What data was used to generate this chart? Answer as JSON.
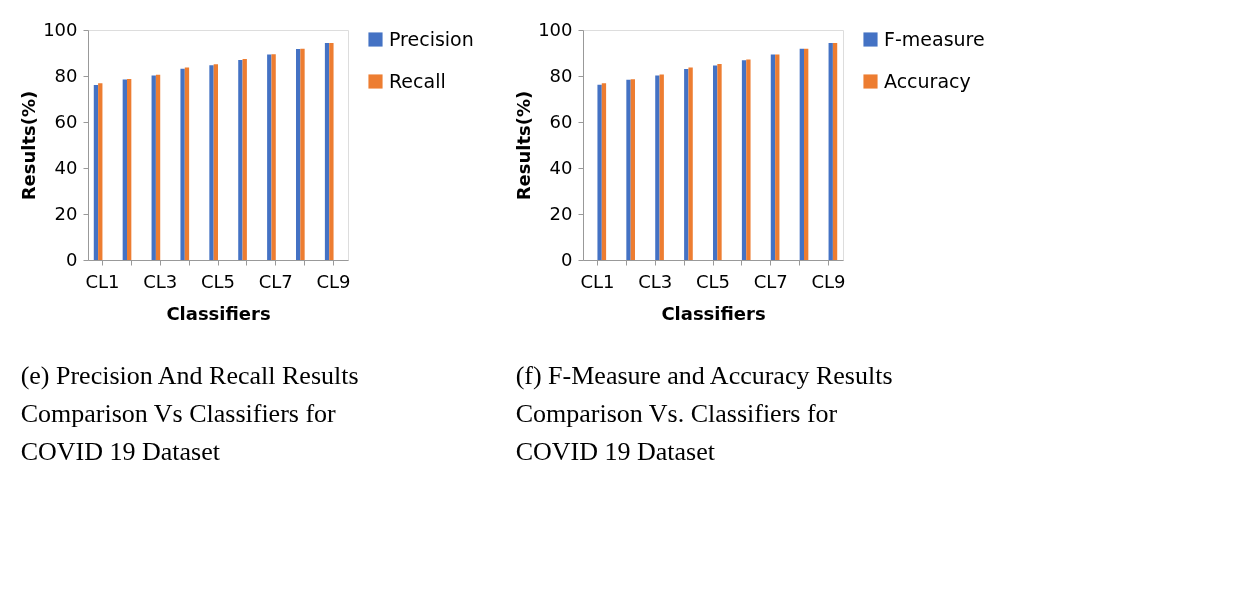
{
  "chart_data": [
    {
      "type": "bar",
      "xlabel": "Classifiers",
      "ylabel": "Results(%)",
      "categories": [
        "CL1",
        null,
        "CL3",
        null,
        "CL5",
        null,
        "CL7",
        null,
        "CL9"
      ],
      "series": [
        {
          "name": "Precision",
          "color": "#4472c4",
          "values": [
            76.1,
            78.5,
            80.2,
            83.1,
            84.7,
            87.0,
            89.4,
            91.7,
            94.3
          ]
        },
        {
          "name": "Recall",
          "color": "#ed7d31",
          "values": [
            76.8,
            78.7,
            80.5,
            83.7,
            85.1,
            87.4,
            89.5,
            91.8,
            94.3
          ]
        }
      ],
      "ylim": [
        0,
        100
      ],
      "yticks": [
        0,
        20,
        40,
        60,
        80,
        100
      ],
      "grid": false,
      "legend": "right",
      "annotations": [
        "(e) Precision And Recall Results Comparison Vs Classifiers for COVID 19 Dataset"
      ]
    },
    {
      "type": "bar",
      "xlabel": "Classifiers",
      "ylabel": "Results(%)",
      "categories": [
        "CL1",
        null,
        "CL3",
        null,
        "CL5",
        null,
        "CL7",
        null,
        "CL9"
      ],
      "series": [
        {
          "name": "F-measure",
          "color": "#4472c4",
          "values": [
            76.2,
            78.4,
            80.2,
            83.0,
            84.6,
            86.9,
            89.4,
            91.9,
            94.4
          ]
        },
        {
          "name": "Accuracy",
          "color": "#ed7d31",
          "values": [
            76.8,
            78.6,
            80.6,
            83.7,
            85.2,
            87.2,
            89.4,
            91.9,
            94.4
          ]
        }
      ],
      "ylim": [
        0,
        100
      ],
      "yticks": [
        0,
        20,
        40,
        60,
        80,
        100
      ],
      "grid": false,
      "legend": "right",
      "annotations": [
        "(f) F-Measure and Accuracy Results Comparison Vs. Classifiers for COVID 19 Dataset"
      ]
    }
  ]
}
